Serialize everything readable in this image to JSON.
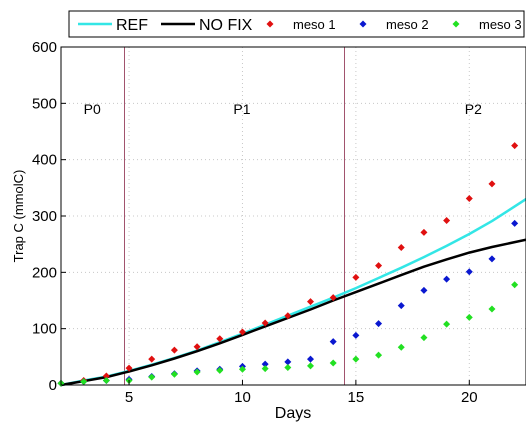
{
  "chart_data": {
    "type": "scatter",
    "xlabel": "Days",
    "ylabel": "Trap C (mmolC)",
    "xlim": [
      2,
      22.5
    ],
    "ylim": [
      0,
      600
    ],
    "xticks": [
      5,
      10,
      15,
      20
    ],
    "yticks": [
      0,
      100,
      200,
      300,
      400,
      500,
      600
    ],
    "grid": true,
    "legend_position": "top",
    "phases": [
      {
        "label": "P0",
        "x": 3.0,
        "y": 490
      },
      {
        "label": "P1",
        "x": 9.6,
        "y": 490
      },
      {
        "label": "P2",
        "x": 19.8,
        "y": 490
      }
    ],
    "phase_boundaries": [
      4.8,
      14.5
    ],
    "lines": [
      {
        "name": "REF",
        "color": "#33e6e6",
        "x": [
          2,
          3,
          4,
          5,
          6,
          7,
          8,
          9,
          10,
          11,
          12,
          13,
          14,
          15,
          16,
          17,
          18,
          19,
          20,
          21,
          22.5
        ],
        "y": [
          0,
          8,
          15,
          25,
          36,
          48,
          61,
          76,
          91,
          107,
          123,
          139,
          155,
          172,
          190,
          208,
          227,
          247,
          268,
          291,
          330
        ]
      },
      {
        "name": "NO FIX",
        "color": "#000000",
        "x": [
          2,
          3,
          4,
          5,
          6,
          7,
          8,
          9,
          10,
          11,
          12,
          13,
          14,
          15,
          16,
          17,
          18,
          19,
          20,
          21,
          22.5
        ],
        "y": [
          0,
          7,
          14,
          24,
          35,
          47,
          60,
          74,
          89,
          104,
          119,
          134,
          150,
          165,
          180,
          195,
          210,
          223,
          235,
          245,
          258
        ]
      }
    ],
    "series": [
      {
        "name": "meso 1",
        "color": "#e01010",
        "x": [
          2,
          3,
          4,
          5,
          6,
          7,
          8,
          9,
          10,
          11,
          12,
          13,
          14,
          15,
          16,
          17,
          18,
          19,
          20,
          21,
          22
        ],
        "y": [
          3,
          8,
          16,
          30,
          46,
          62,
          68,
          82,
          94,
          110,
          123,
          148,
          155,
          191,
          212,
          244,
          271,
          292,
          331,
          357,
          425
        ]
      },
      {
        "name": "meso 2",
        "color": "#0a18d0",
        "x": [
          2,
          3,
          4,
          5,
          6,
          7,
          8,
          9,
          10,
          11,
          12,
          13,
          14,
          15,
          16,
          17,
          18,
          19,
          20,
          21,
          22
        ],
        "y": [
          3,
          6,
          8,
          10,
          15,
          20,
          25,
          28,
          33,
          37,
          41,
          46,
          77,
          88,
          109,
          141,
          168,
          188,
          201,
          224,
          287
        ]
      },
      {
        "name": "meso 3",
        "color": "#22e022",
        "x": [
          2,
          3,
          4,
          5,
          6,
          7,
          8,
          9,
          10,
          11,
          12,
          13,
          14,
          15,
          16,
          17,
          18,
          19,
          20,
          21,
          22
        ],
        "y": [
          3,
          6,
          8,
          8,
          14,
          19,
          23,
          26,
          28,
          29,
          31,
          34,
          39,
          46,
          53,
          67,
          84,
          108,
          120,
          135,
          178
        ]
      }
    ]
  }
}
